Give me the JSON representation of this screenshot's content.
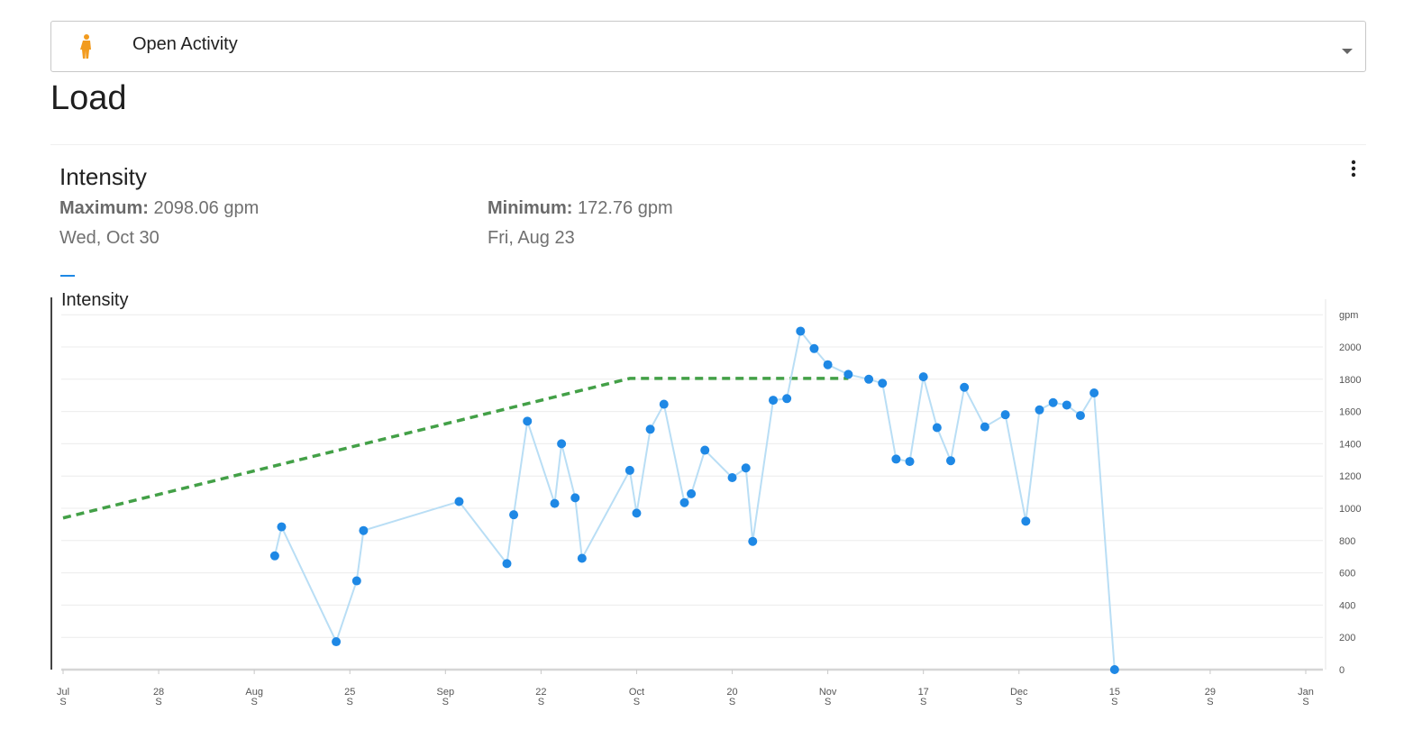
{
  "activity_select": {
    "label": "Open Activity",
    "icon": "person-icon",
    "icon_color": "#f29b1e"
  },
  "page": {
    "title": "Load"
  },
  "card": {
    "title": "Intensity",
    "menu_icon": "more-vert-icon",
    "maximum": {
      "label": "Maximum:",
      "value": "2098.06 gpm",
      "date": "Wed, Oct 30"
    },
    "minimum": {
      "label": "Minimum:",
      "value": "172.76 gpm",
      "date": "Fri, Aug 23"
    }
  },
  "chart_data": {
    "type": "line",
    "title": "Intensity",
    "unit_label": "gpm",
    "ylim": [
      0,
      2200
    ],
    "yticks": [
      0,
      200,
      400,
      600,
      800,
      1000,
      1200,
      1400,
      1600,
      1800,
      2000
    ],
    "xlim": [
      0,
      182
    ],
    "x_ticks": [
      {
        "day": 0,
        "label": "Jul",
        "sub": "S"
      },
      {
        "day": 14,
        "label": "28",
        "sub": "S"
      },
      {
        "day": 28,
        "label": "Aug",
        "sub": "S"
      },
      {
        "day": 42,
        "label": "25",
        "sub": "S"
      },
      {
        "day": 56,
        "label": "Sep",
        "sub": "S"
      },
      {
        "day": 70,
        "label": "22",
        "sub": "S"
      },
      {
        "day": 84,
        "label": "Oct",
        "sub": "S"
      },
      {
        "day": 98,
        "label": "20",
        "sub": "S"
      },
      {
        "day": 112,
        "label": "Nov",
        "sub": "S"
      },
      {
        "day": 126,
        "label": "17",
        "sub": "S"
      },
      {
        "day": 140,
        "label": "Dec",
        "sub": "S"
      },
      {
        "day": 154,
        "label": "15",
        "sub": "S"
      },
      {
        "day": 168,
        "label": "29",
        "sub": "S"
      },
      {
        "day": 182,
        "label": "Jan",
        "sub": "S"
      }
    ],
    "grid": true,
    "colors": {
      "line": "#b9def5",
      "point": "#1e88e5",
      "target": "#43a047",
      "grid": "#ececec",
      "axis": "#d6d6d6"
    },
    "series": [
      {
        "points": [
          [
            31,
            705
          ],
          [
            32,
            885
          ],
          [
            40,
            173
          ],
          [
            43,
            550
          ],
          [
            44,
            862
          ],
          [
            58,
            1042
          ],
          [
            65,
            657
          ],
          [
            66,
            960
          ],
          [
            68,
            1540
          ],
          [
            72,
            1030
          ],
          [
            73,
            1400
          ],
          [
            75,
            1065
          ],
          [
            76,
            690
          ],
          [
            83,
            1235
          ],
          [
            84,
            970
          ],
          [
            86,
            1490
          ],
          [
            88,
            1645
          ],
          [
            91,
            1035
          ],
          [
            92,
            1090
          ],
          [
            94,
            1360
          ],
          [
            98,
            1190
          ],
          [
            100,
            1250
          ],
          [
            101,
            795
          ],
          [
            104,
            1670
          ],
          [
            106,
            1680
          ],
          [
            108,
            2098
          ],
          [
            110,
            1990
          ],
          [
            112,
            1890
          ],
          [
            115,
            1830
          ],
          [
            118,
            1800
          ],
          [
            120,
            1775
          ],
          [
            122,
            1305
          ],
          [
            124,
            1290
          ],
          [
            126,
            1815
          ],
          [
            128,
            1500
          ],
          [
            130,
            1295
          ],
          [
            132,
            1750
          ],
          [
            135,
            1505
          ],
          [
            138,
            1580
          ],
          [
            141,
            920
          ],
          [
            143,
            1610
          ],
          [
            145,
            1655
          ],
          [
            147,
            1640
          ],
          [
            149,
            1575
          ],
          [
            151,
            1715
          ],
          [
            154,
            0
          ]
        ]
      },
      {
        "style": "dashed",
        "points": [
          [
            0,
            940
          ],
          [
            83,
            1805
          ],
          [
            115,
            1805
          ]
        ]
      }
    ]
  }
}
